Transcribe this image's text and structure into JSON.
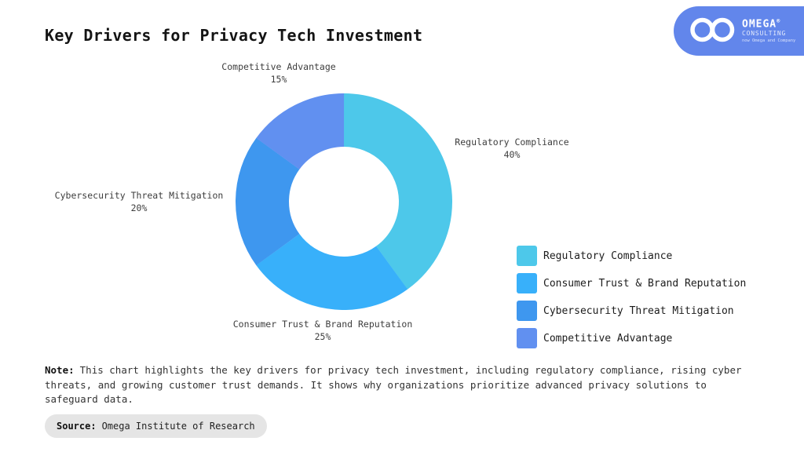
{
  "title": "Key Drivers for Privacy Tech Investment",
  "logo": {
    "brand": "OMEGA",
    "registered": "®",
    "subtitle": "CONSULTING",
    "tagline": "now Omega and Company",
    "bg_color": "#6286eb",
    "icon": "infinity-icon"
  },
  "chart_data": {
    "type": "pie",
    "subtype": "donut",
    "title": "Key Drivers for Privacy Tech Investment",
    "categories": [
      "Regulatory Compliance",
      "Consumer Trust & Brand Reputation",
      "Cybersecurity Threat Mitigation",
      "Competitive Advantage"
    ],
    "values": [
      40,
      25,
      20,
      15
    ],
    "value_labels": [
      "40%",
      "25%",
      "20%",
      "15%"
    ],
    "unit": "%",
    "colors": [
      "#4dc8ea",
      "#38b0fa",
      "#3e97ef",
      "#6190f0"
    ],
    "start_angle_deg": 0,
    "direction": "clockwise",
    "inner_radius_ratio": 0.51,
    "legend_position": "right",
    "legend_items": [
      "Regulatory Compliance",
      "Consumer Trust & Brand Reputation",
      "Cybersecurity Threat Mitigation",
      "Competitive Advantage"
    ]
  },
  "note": {
    "label": "Note:",
    "text": "This chart highlights the key drivers for privacy tech investment, including regulatory compliance, rising cyber threats, and growing customer trust demands. It shows why organizations prioritize advanced privacy solutions to safeguard data."
  },
  "source": {
    "label": "Source:",
    "text": "Omega Institute of Research"
  }
}
